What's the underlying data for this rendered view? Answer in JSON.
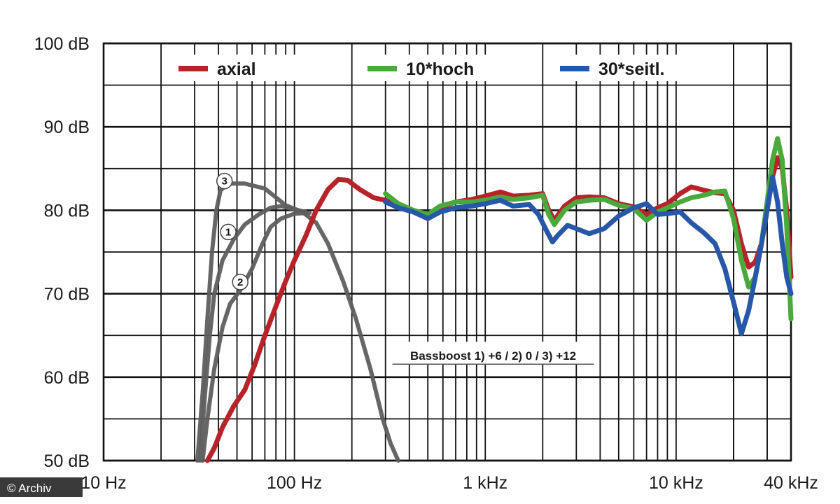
{
  "chart_data": {
    "type": "line",
    "title": "",
    "xlabel": "",
    "ylabel": "",
    "x_scale": "log",
    "xlim": [
      10,
      40000
    ],
    "ylim": [
      50,
      100
    ],
    "grid": true,
    "legend_position": "top",
    "x_ticks": [
      {
        "value": 10,
        "label": "10 Hz"
      },
      {
        "value": 100,
        "label": "100 Hz"
      },
      {
        "value": 1000,
        "label": "1 kHz"
      },
      {
        "value": 10000,
        "label": "10 kHz"
      },
      {
        "value": 40000,
        "label": "40 kHz"
      }
    ],
    "y_ticks": [
      {
        "value": 100,
        "label": "100 dB"
      },
      {
        "value": 90,
        "label": "90 dB"
      },
      {
        "value": 80,
        "label": "80 dB"
      },
      {
        "value": 70,
        "label": "70 dB"
      },
      {
        "value": 60,
        "label": "60 dB"
      },
      {
        "value": 50,
        "label": "50 dB"
      }
    ],
    "series": [
      {
        "name": "axial",
        "color": "#b8232a",
        "in_legend": true,
        "points": [
          [
            35,
            50
          ],
          [
            38,
            51.5
          ],
          [
            42,
            54
          ],
          [
            48,
            56.5
          ],
          [
            55,
            58.5
          ],
          [
            62,
            61.5
          ],
          [
            70,
            65
          ],
          [
            80,
            68.5
          ],
          [
            90,
            71.5
          ],
          [
            100,
            74
          ],
          [
            115,
            77
          ],
          [
            130,
            80
          ],
          [
            150,
            82.5
          ],
          [
            170,
            83.7
          ],
          [
            190,
            83.6
          ],
          [
            220,
            82.5
          ],
          [
            260,
            81.5
          ],
          [
            300,
            81.2
          ],
          [
            350,
            80.5
          ],
          [
            420,
            79.8
          ],
          [
            500,
            79.3
          ],
          [
            580,
            80.3
          ],
          [
            700,
            81
          ],
          [
            850,
            81.3
          ],
          [
            1000,
            81.7
          ],
          [
            1200,
            82.2
          ],
          [
            1400,
            81.7
          ],
          [
            1700,
            81.8
          ],
          [
            2000,
            82
          ],
          [
            2150,
            80
          ],
          [
            2300,
            78.8
          ],
          [
            2600,
            80.5
          ],
          [
            3000,
            81.5
          ],
          [
            3500,
            81.6
          ],
          [
            4200,
            81.5
          ],
          [
            5000,
            80.8
          ],
          [
            6000,
            80.4
          ],
          [
            7000,
            79.5
          ],
          [
            8000,
            80.3
          ],
          [
            9000,
            80.8
          ],
          [
            10500,
            82
          ],
          [
            12000,
            82.8
          ],
          [
            14000,
            82.4
          ],
          [
            16000,
            82.1
          ],
          [
            18000,
            82
          ],
          [
            20000,
            80
          ],
          [
            22000,
            76
          ],
          [
            24000,
            73.2
          ],
          [
            26000,
            73.8
          ],
          [
            28000,
            76
          ],
          [
            30000,
            80
          ],
          [
            32000,
            84
          ],
          [
            34000,
            86.3
          ],
          [
            36000,
            85
          ],
          [
            38000,
            80
          ],
          [
            40000,
            72
          ]
        ]
      },
      {
        "name": "10*hoch",
        "color": "#4aa93b",
        "in_legend": true,
        "points": [
          [
            300,
            82
          ],
          [
            350,
            80.8
          ],
          [
            420,
            80
          ],
          [
            500,
            79.5
          ],
          [
            580,
            80.5
          ],
          [
            700,
            81
          ],
          [
            850,
            81
          ],
          [
            1000,
            81.2
          ],
          [
            1200,
            81.6
          ],
          [
            1400,
            81.3
          ],
          [
            1700,
            81.5
          ],
          [
            2000,
            81.8
          ],
          [
            2150,
            79.5
          ],
          [
            2300,
            78.3
          ],
          [
            2600,
            80
          ],
          [
            3000,
            81
          ],
          [
            3500,
            81.2
          ],
          [
            4200,
            81.3
          ],
          [
            5000,
            80.6
          ],
          [
            6000,
            80.2
          ],
          [
            7000,
            78.8
          ],
          [
            8000,
            79.8
          ],
          [
            9000,
            80.3
          ],
          [
            10500,
            81
          ],
          [
            12000,
            81.5
          ],
          [
            14000,
            81.8
          ],
          [
            16000,
            82.2
          ],
          [
            18000,
            82.3
          ],
          [
            20000,
            79
          ],
          [
            22000,
            74
          ],
          [
            24000,
            70.8
          ],
          [
            26000,
            72
          ],
          [
            28000,
            76
          ],
          [
            30000,
            81
          ],
          [
            32000,
            86
          ],
          [
            34000,
            88.6
          ],
          [
            36000,
            86
          ],
          [
            38000,
            78
          ],
          [
            40000,
            67
          ]
        ]
      },
      {
        "name": "30*seitl.",
        "color": "#2757a8",
        "in_legend": true,
        "points": [
          [
            300,
            81
          ],
          [
            350,
            80.3
          ],
          [
            420,
            79.8
          ],
          [
            500,
            79
          ],
          [
            580,
            79.8
          ],
          [
            700,
            80.3
          ],
          [
            850,
            80.5
          ],
          [
            1000,
            80.8
          ],
          [
            1200,
            81.2
          ],
          [
            1400,
            80.5
          ],
          [
            1700,
            80.7
          ],
          [
            1900,
            79.5
          ],
          [
            2100,
            77.5
          ],
          [
            2250,
            76.2
          ],
          [
            2400,
            77
          ],
          [
            2700,
            78.2
          ],
          [
            3000,
            77.8
          ],
          [
            3500,
            77.2
          ],
          [
            4200,
            77.8
          ],
          [
            5000,
            79.3
          ],
          [
            6000,
            80.3
          ],
          [
            7000,
            80.8
          ],
          [
            8000,
            79.5
          ],
          [
            9000,
            79.6
          ],
          [
            10500,
            79.8
          ],
          [
            12000,
            78.5
          ],
          [
            14000,
            77.3
          ],
          [
            16000,
            76
          ],
          [
            18000,
            73
          ],
          [
            20000,
            69
          ],
          [
            22000,
            65.2
          ],
          [
            24000,
            68
          ],
          [
            26000,
            72
          ],
          [
            28000,
            76
          ],
          [
            30000,
            80
          ],
          [
            32000,
            84
          ],
          [
            34000,
            81
          ],
          [
            36000,
            76
          ],
          [
            38000,
            72
          ],
          [
            40000,
            70
          ]
        ]
      },
      {
        "name": "",
        "color": "#5e5e5e",
        "curve_label": "1",
        "label_at": [
          45,
          77.4
        ],
        "in_legend": false,
        "points": [
          [
            32,
            50
          ],
          [
            34,
            58
          ],
          [
            36,
            65
          ],
          [
            38,
            70
          ],
          [
            42,
            74
          ],
          [
            48,
            76.5
          ],
          [
            55,
            78.3
          ],
          [
            65,
            79.5
          ],
          [
            75,
            80.3
          ],
          [
            85,
            80.5
          ],
          [
            100,
            80.1
          ],
          [
            115,
            79.8
          ]
        ]
      },
      {
        "name": "",
        "color": "#5e5e5e",
        "curve_label": "2",
        "label_at": [
          52,
          71.4
        ],
        "in_legend": false,
        "points": [
          [
            33,
            50
          ],
          [
            35,
            55
          ],
          [
            38,
            61
          ],
          [
            42,
            66
          ],
          [
            46,
            68.8
          ],
          [
            52,
            70.4
          ],
          [
            60,
            73
          ],
          [
            68,
            76
          ],
          [
            75,
            78
          ],
          [
            85,
            79
          ],
          [
            100,
            79.6
          ],
          [
            120,
            79.7
          ]
        ]
      },
      {
        "name": "",
        "color": "#5e5e5e",
        "curve_label": "3",
        "label_at": [
          43,
          83.5
        ],
        "in_legend": false,
        "points": [
          [
            31,
            50
          ],
          [
            33,
            58
          ],
          [
            35,
            67
          ],
          [
            37,
            75
          ],
          [
            39,
            80
          ],
          [
            41,
            82.4
          ],
          [
            45,
            83.2
          ],
          [
            55,
            83.2
          ],
          [
            70,
            82.6
          ],
          [
            90,
            80.6
          ],
          [
            110,
            79.8
          ],
          [
            130,
            78.5
          ],
          [
            150,
            76
          ],
          [
            180,
            71.5
          ],
          [
            210,
            67
          ],
          [
            250,
            61
          ],
          [
            290,
            55
          ],
          [
            320,
            52
          ],
          [
            350,
            50
          ]
        ]
      }
    ],
    "annotation": "Bassboost 1) +6 / 2) 0 / 3) +12",
    "annotation_at": [
      1100,
      62.4
    ]
  },
  "watermark": "© Archiv"
}
